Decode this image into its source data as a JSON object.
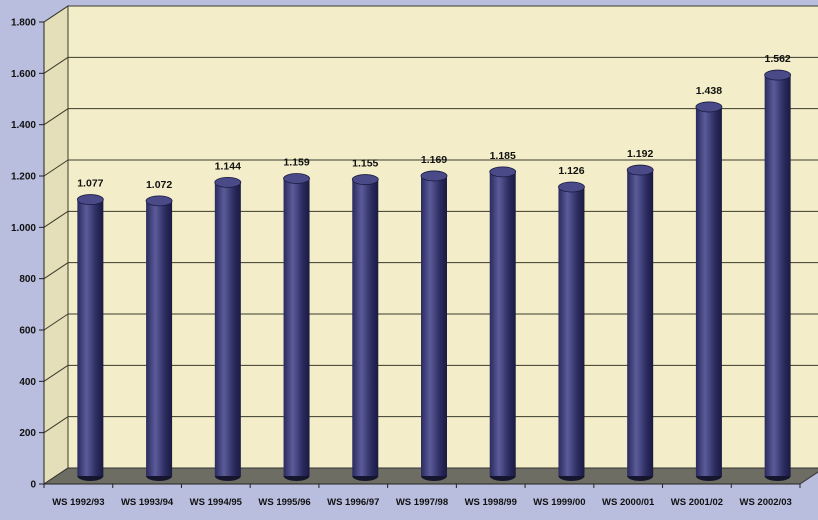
{
  "chart_data": {
    "type": "bar",
    "style": "3d-cylinder",
    "categories": [
      "WS 1992/93",
      "WS 1993/94",
      "WS 1994/95",
      "WS 1995/96",
      "WS 1996/97",
      "WS 1997/98",
      "WS 1998/99",
      "WS 1999/00",
      "WS 2000/01",
      "WS 2001/02",
      "WS 2002/03"
    ],
    "values": [
      1077,
      1072,
      1144,
      1159,
      1155,
      1169,
      1185,
      1126,
      1192,
      1438,
      1562
    ],
    "value_labels": [
      "1.077",
      "1.072",
      "1.144",
      "1.159",
      "1.155",
      "1.169",
      "1.185",
      "1.126",
      "1.192",
      "1.438",
      "1.562"
    ],
    "ylim": [
      0,
      1800
    ],
    "yticks": [
      0,
      200,
      400,
      600,
      800,
      1000,
      1200,
      1400,
      1600,
      1800
    ],
    "ytick_labels": [
      "0",
      "200",
      "400",
      "600",
      "800",
      "1.000",
      "1.200",
      "1.400",
      "1.600",
      "1.800"
    ],
    "title": "",
    "xlabel": "",
    "ylabel": "",
    "grid": true,
    "legend": "none",
    "colors": {
      "page_background": "#b9bdde",
      "wall": "#f3eec9",
      "side_wall": "#e4dfb8",
      "floor": "#6d6d64",
      "bar_body": "#2a2a5e",
      "bar_highlight": "#5b5b9a",
      "bar_top": "#4a4a88",
      "gridline": "#3a3a2a",
      "text": "#111111"
    }
  }
}
